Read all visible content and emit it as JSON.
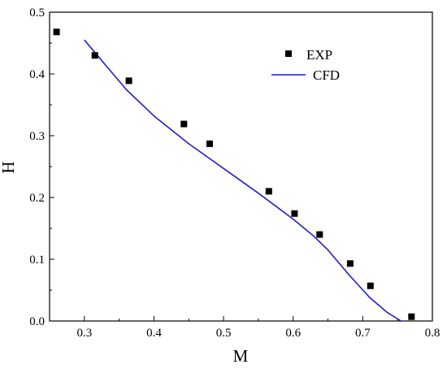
{
  "chart_data": {
    "type": "scatter",
    "xlabel": "M",
    "ylabel": "H",
    "xlim": [
      0.25,
      0.8
    ],
    "ylim": [
      0,
      0.5
    ],
    "xticks": [
      "0.3",
      "0.4",
      "0.5",
      "0.6",
      "0.7",
      "0.8"
    ],
    "yticks": [
      "0.0",
      "0.1",
      "0.2",
      "0.3",
      "0.4",
      "0.5"
    ],
    "grid": false,
    "legend_position": "top-right",
    "series": [
      {
        "name": "EXP",
        "kind": "markers",
        "marker": "square",
        "color": "#000000",
        "x": [
          0.26,
          0.315,
          0.364,
          0.443,
          0.48,
          0.565,
          0.602,
          0.638,
          0.682,
          0.711,
          0.77
        ],
        "y": [
          0.468,
          0.43,
          0.389,
          0.319,
          0.287,
          0.21,
          0.174,
          0.14,
          0.093,
          0.057,
          0.007
        ]
      },
      {
        "name": "CFD",
        "kind": "line",
        "color": "#1f1fc8",
        "x": [
          0.3,
          0.33,
          0.36,
          0.4,
          0.45,
          0.5,
          0.55,
          0.6,
          0.63,
          0.65,
          0.68,
          0.71,
          0.735,
          0.755
        ],
        "y": [
          0.455,
          0.415,
          0.375,
          0.332,
          0.287,
          0.247,
          0.207,
          0.165,
          0.137,
          0.115,
          0.075,
          0.038,
          0.014,
          0.0
        ]
      }
    ]
  }
}
